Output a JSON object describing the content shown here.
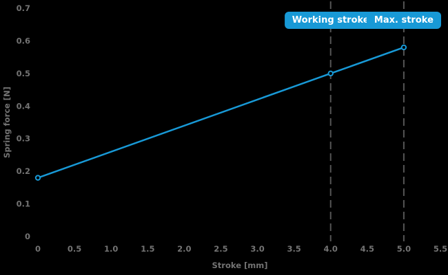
{
  "chart_data": {
    "type": "line",
    "title": "",
    "xlabel": "Stroke [mm]",
    "ylabel": "Spring force [N]",
    "x": [
      0,
      4,
      5
    ],
    "series": [
      {
        "name": "Spring force",
        "values": [
          0.18,
          0.5,
          0.58
        ]
      }
    ],
    "xlim": [
      0,
      5.5
    ],
    "ylim": [
      0,
      0.7
    ],
    "xticks": [
      0,
      0.5,
      1.0,
      1.5,
      2.0,
      2.5,
      3.0,
      3.5,
      4.0,
      4.5,
      5.0,
      5.5
    ],
    "xtick_labels": [
      "0",
      "0.5",
      "1.0",
      "1.5",
      "2.0",
      "2.5",
      "3.0",
      "3.5",
      "4.0",
      "4.5",
      "5.0",
      "5.5"
    ],
    "yticks": [
      0,
      0.1,
      0.2,
      0.3,
      0.4,
      0.5,
      0.6,
      0.7
    ],
    "ytick_labels": [
      "0",
      "0.1",
      "0.2",
      "0.3",
      "0.4",
      "0.5",
      "0.6",
      "0.7"
    ],
    "grid": false,
    "legend": "none",
    "marker": "open-circle",
    "annotations": [
      {
        "label": "Working stroke",
        "x": 4.0,
        "line_style": "dashed"
      },
      {
        "label": "Max. stroke",
        "x": 5.0,
        "line_style": "dashed"
      }
    ]
  },
  "colors": {
    "background": "#000000",
    "accent_blue": "#1899d6",
    "text_gray": "#737373",
    "dash_gray": "#555555",
    "badge_text": "#ffffff"
  }
}
